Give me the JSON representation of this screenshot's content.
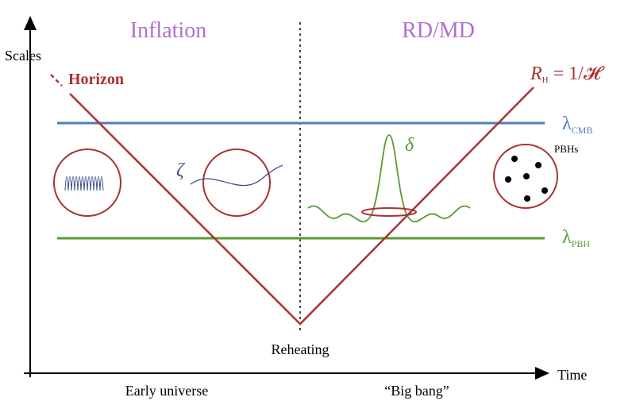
{
  "header": {
    "left_era": "Inflation",
    "right_era": "RD/MD"
  },
  "axes": {
    "y_label": "Scales",
    "x_label": "Time",
    "left_period": "Early universe",
    "right_period": "“Big bang”",
    "middle": "Reheating"
  },
  "horizon": {
    "label": "Horizon",
    "formula_main": "R",
    "formula_sub": "H",
    "formula_rest": " = 1/𝓗"
  },
  "scales": {
    "cmb_symbol": "λ",
    "cmb_sub": "CMB",
    "pbh_symbol": "λ",
    "pbh_sub": "PBH"
  },
  "symbols": {
    "zeta": "ζ",
    "delta": "δ",
    "pbhs": "PBHs"
  }
}
